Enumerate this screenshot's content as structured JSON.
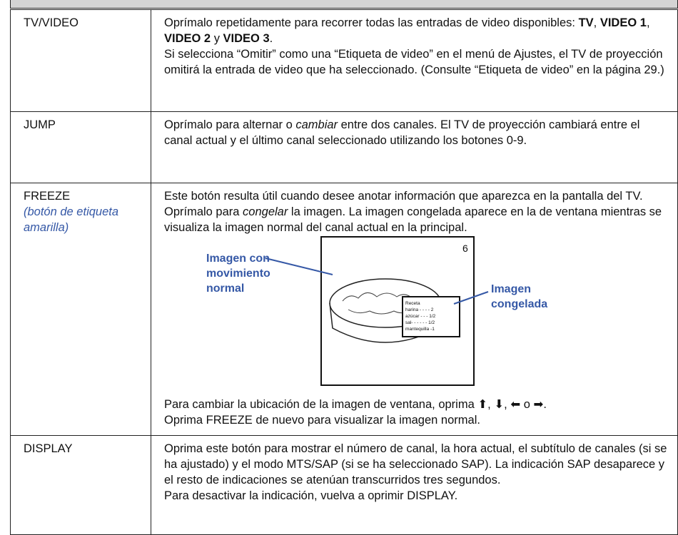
{
  "table": {
    "rows": [
      {
        "key": "TV/VIDEO",
        "text": [
          [
            "Oprímalo repetidamente para recorrer todas las entradas de video disponibles: ",
            {
              "text": "TV",
              "bold": true
            },
            ", ",
            {
              "text": "VIDEO 1",
              "bold": true
            },
            ", ",
            {
              "text": "VIDEO 2",
              "bold": true
            },
            " y ",
            {
              "text": "VIDEO 3",
              "bold": true
            },
            "."
          ],
          [
            "Si selecciona “Omitir” como una “Etiqueta de video” en el menú de Ajustes, el TV de proyección omitirá la entrada de video que ha seleccionado. (Consulte “Etiqueta de video” en la página 29.)"
          ]
        ]
      },
      {
        "key": "JUMP",
        "text": [
          [
            "Oprímalo para alternar o ",
            {
              "text": "cambiar",
              "italic": true
            },
            " entre dos canales. El TV de proyección cambiará entre el canal actual y el último canal seleccionado utilizando los botones 0-9."
          ]
        ]
      },
      {
        "key": "FREEZE",
        "key_note": "(botón de etiqueta amarilla)",
        "text": [
          [
            "Este botón resulta útil cuando desee anotar información que aparezca en la pantalla del TV."
          ],
          [
            "Oprímalo para ",
            {
              "text": "congelar",
              "italic": true
            },
            " la imagen. La imagen congelada aparece en la de ventana mientras se visualiza la imagen normal del canal actual en la principal."
          ]
        ],
        "figure": {
          "channel": "6",
          "label_normal": "Imagen con movimiento normal",
          "label_frozen": "Imagen congelada",
          "recipe": [
            "Receta",
            "harina - - - - 2",
            "azúcar - - - 1/2",
            "sal- - - - - - 1/2",
            "mantequilla -1"
          ]
        },
        "text_after": [
          [
            "Para cambiar la ubicación de la imagen de ventana, oprima ⬆, ⬇, ⬅ o ➡."
          ],
          [
            "Oprima FREEZE de nuevo para visualizar la imagen normal."
          ]
        ]
      },
      {
        "key": "DISPLAY",
        "text": [
          [
            "Oprima este botón para mostrar el número de canal, la hora actual, el subtítulo de canales (si se ha ajustado) y el modo MTS/SAP (si se ha seleccionado SAP). La indicación SAP desaparece y el resto de indicaciones se atenúan transcurridos tres segundos."
          ],
          [
            "Para desactivar la indicación, vuelva a oprimir DISPLAY."
          ]
        ]
      }
    ]
  }
}
